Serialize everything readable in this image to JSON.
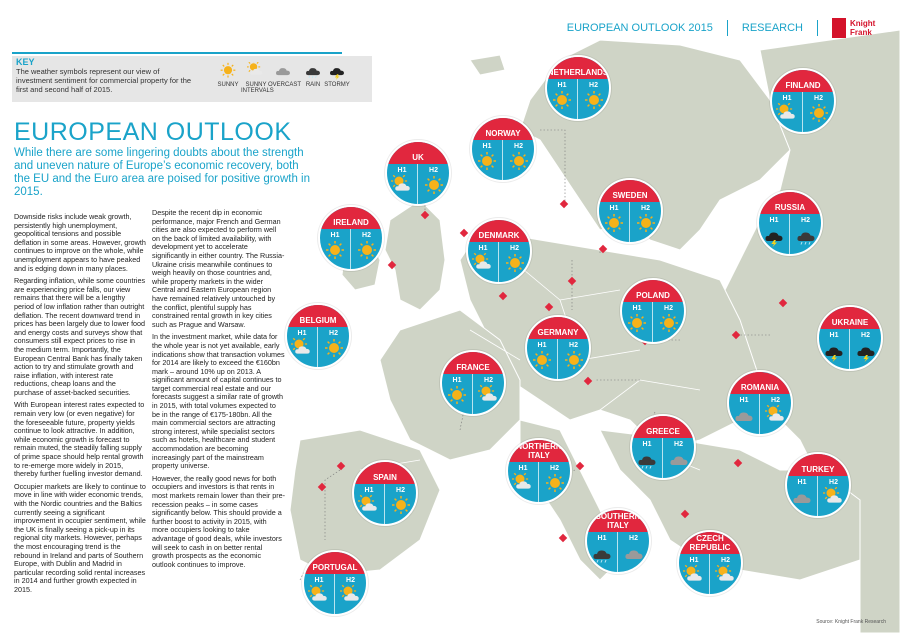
{
  "header": {
    "title": "EUROPEAN OUTLOOK 2015",
    "section": "RESEARCH",
    "logo": "Knight Frank"
  },
  "key": {
    "title": "KEY",
    "text": "The weather symbols represent our view of investment sentiment for commercial property for the first and second half of 2015.",
    "items": [
      {
        "label": "SUNNY",
        "icon": "sunny"
      },
      {
        "label": "SUNNY INTERVALS",
        "icon": "sunny-intervals"
      },
      {
        "label": "OVERCAST",
        "icon": "overcast"
      },
      {
        "label": "RAIN",
        "icon": "rain"
      },
      {
        "label": "STORMY",
        "icon": "stormy"
      }
    ]
  },
  "title": "EUROPEAN OUTLOOK",
  "subtitle": "While there are some lingering doubts about the strength and uneven nature of Europe’s economic recovery, both the EU and the Euro area are poised for positive growth in 2015.",
  "col1": [
    "Downside risks include weak growth, persistently high unemployment, geopolitical tensions and possible deflation in some areas. However, growth continues to improve on the whole, while unemployment appears to have peaked and is edging down in many places.",
    "Regarding inflation, while some countries are experiencing price falls, our view remains that there will be a lengthy period of low inflation rather than outright deflation. The recent downward trend in prices has been largely due to lower food and energy costs and surveys show that consumers still expect prices to rise in the medium term. Importantly, the European Central Bank has finally taken action to try and stimulate growth and raise inflation, with interest rate reductions, cheap loans and the purchase of asset-backed securities.",
    "With European interest rates expected to remain very low (or even negative) for the foreseeable future, property yields continue to look attractive. In addition, while economic growth is forecast to remain muted, the steadily falling supply of prime space should help rental growth to re-emerge more widely in 2015, thereby further fuelling investor demand.",
    "Occupier markets are likely to continue to move in line with wider economic trends, with the Nordic countries and the Baltics currently seeing a significant improvement in occupier sentiment, while the UK is finally seeing a pick-up in its regional city markets. However, perhaps the most encouraging trend is the rebound in Ireland and parts of Southern Europe, with Dublin and Madrid in particular recording solid rental increases in 2014 and further growth expected in 2015."
  ],
  "col2": [
    "Despite the recent dip in economic performance, major French and German cities are also expected to perform well on the back of limited availability, with development yet to accelerate significantly in either country. The Russia-Ukraine crisis meanwhile continues to weigh heavily on those countries and, while property markets in the wider Central and Eastern European region have remained relatively untouched by the conflict, plentiful supply has constrained rental growth in key cities such as Prague and Warsaw.",
    "In the investment market, while data for the whole year is not yet available, early indications show that transaction volumes for 2014 are likely to exceed the €160bn mark – around 10% up on 2013. A significant amount of capital continues to target commercial real estate and our forecasts suggest a similar rate of growth in 2015, with total volumes expected to be in the range of €175-180bn. All the main commercial sectors are attracting strong interest, while specialist sectors such as hotels, healthcare and student accommodation are becoming increasingly part of the mainstream property universe.",
    "However, the really good news for both occupiers and investors is that rents in most markets remain lower than their pre-recession peaks – in some cases significantly below. This should provide a further boost to activity in 2015, with more occupiers looking to take advantage of good deals, while investors will seek to cash in on better rental growth prospects as the economic outlook continues to improve."
  ],
  "half_labels": {
    "h1": "H1",
    "h2": "H2"
  },
  "countries": [
    {
      "name": "NETHERLANDS",
      "h1": "sunny",
      "h2": "sunny"
    },
    {
      "name": "FINLAND",
      "h1": "sunny-intervals",
      "h2": "sunny"
    },
    {
      "name": "NORWAY",
      "h1": "sunny",
      "h2": "sunny"
    },
    {
      "name": "UK",
      "h1": "sunny-intervals",
      "h2": "sunny"
    },
    {
      "name": "SWEDEN",
      "h1": "sunny",
      "h2": "sunny"
    },
    {
      "name": "RUSSIA",
      "h1": "stormy",
      "h2": "rain"
    },
    {
      "name": "IRELAND",
      "h1": "sunny",
      "h2": "sunny"
    },
    {
      "name": "DENMARK",
      "h1": "sunny-intervals",
      "h2": "sunny"
    },
    {
      "name": "POLAND",
      "h1": "sunny",
      "h2": "sunny"
    },
    {
      "name": "BELGIUM",
      "h1": "sunny-intervals",
      "h2": "sunny"
    },
    {
      "name": "GERMANY",
      "h1": "sunny",
      "h2": "sunny"
    },
    {
      "name": "UKRAINE",
      "h1": "stormy",
      "h2": "stormy"
    },
    {
      "name": "FRANCE",
      "h1": "sunny",
      "h2": "sunny-intervals"
    },
    {
      "name": "ROMANIA",
      "h1": "overcast",
      "h2": "sunny-intervals"
    },
    {
      "name": "GREECE",
      "h1": "rain",
      "h2": "overcast"
    },
    {
      "name": "NORTHERN ITALY",
      "h1": "sunny-intervals",
      "h2": "sunny"
    },
    {
      "name": "SPAIN",
      "h1": "sunny-intervals",
      "h2": "sunny"
    },
    {
      "name": "TURKEY",
      "h1": "overcast",
      "h2": "sunny-intervals"
    },
    {
      "name": "SOUTHERN ITALY",
      "h1": "rain",
      "h2": "overcast"
    },
    {
      "name": "CZECH REPUBLIC",
      "h1": "sunny-intervals",
      "h2": "sunny-intervals"
    },
    {
      "name": "PORTUGAL",
      "h1": "sunny-intervals",
      "h2": "sunny-intervals"
    }
  ],
  "source": "Source: Knight Frank Research",
  "colors": {
    "accent": "#1aa3c9",
    "caption": "#e1273e",
    "land": "#cfd4c6",
    "sea": "#ffffff"
  }
}
